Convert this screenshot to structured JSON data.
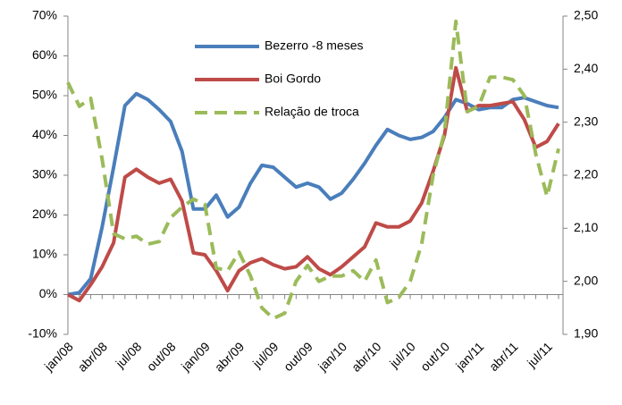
{
  "chart_data": {
    "type": "line",
    "categories": [
      "jan/08",
      null,
      null,
      "abr/08",
      null,
      null,
      "jul/08",
      null,
      null,
      "out/08",
      null,
      null,
      "jan/09",
      null,
      null,
      "abr/09",
      null,
      null,
      "jul/09",
      null,
      null,
      "out/09",
      null,
      null,
      "jan/10",
      null,
      null,
      "abr/10",
      null,
      null,
      "jul/10",
      null,
      null,
      "out/10",
      null,
      null,
      "jan/11",
      null,
      null,
      "abr/11",
      null,
      null,
      "jul/11",
      null
    ],
    "series": [
      {
        "name": "Bezerro -8 meses",
        "color": "#4a7ebb",
        "dash": false,
        "values": [
          0,
          0.5,
          4,
          17,
          32,
          47.5,
          50.5,
          49,
          46.5,
          43.5,
          36,
          21.5,
          21.5,
          25,
          19.5,
          22,
          28,
          32.5,
          32,
          29.5,
          27,
          28,
          27,
          24,
          25.5,
          29,
          33,
          37.5,
          41.5,
          40,
          39,
          39.5,
          41,
          44.5,
          49,
          48,
          46.5,
          47,
          47,
          49,
          49.5,
          48.5,
          47.5,
          47
        ]
      },
      {
        "name": "Boi Gordo",
        "color": "#be4b48",
        "dash": false,
        "values": [
          0,
          -1.5,
          2.5,
          7,
          13,
          29.5,
          31.5,
          29.5,
          28,
          29,
          23.5,
          10.5,
          10,
          6,
          1,
          6,
          8,
          9,
          7.5,
          6.5,
          7,
          9.5,
          6.5,
          5,
          7,
          9.5,
          12,
          18,
          17,
          17,
          18.5,
          23,
          31,
          40,
          57,
          46,
          47.5,
          47.5,
          48,
          48.5,
          44,
          37,
          38.5,
          43
        ]
      },
      {
        "name": "Relação de troca",
        "color": "#9bbb59",
        "dash": true,
        "axis": "y2",
        "values": [
          2.375,
          2.33,
          2.345,
          2.23,
          2.09,
          2.08,
          2.085,
          2.07,
          2.075,
          2.12,
          2.14,
          2.155,
          2.145,
          2.025,
          2.02,
          2.055,
          2.01,
          1.95,
          1.93,
          1.94,
          2.0,
          2.03,
          2.0,
          2.01,
          2.01,
          2.02,
          2.0,
          2.04,
          1.96,
          1.97,
          2.0,
          2.07,
          2.2,
          2.28,
          2.49,
          2.32,
          2.33,
          2.385,
          2.385,
          2.38,
          2.35,
          2.24,
          2.16,
          2.25
        ]
      }
    ],
    "ylim": [
      -10,
      70
    ],
    "yticks": [
      {
        "value": -10,
        "label": "-10%"
      },
      {
        "value": 0,
        "label": "0%"
      },
      {
        "value": 10,
        "label": "10%"
      },
      {
        "value": 20,
        "label": "20%"
      },
      {
        "value": 30,
        "label": "30%"
      },
      {
        "value": 40,
        "label": "40%"
      },
      {
        "value": 50,
        "label": "50%"
      },
      {
        "value": 60,
        "label": "60%"
      },
      {
        "value": 70,
        "label": "70%"
      }
    ],
    "y2lim": [
      1.9,
      2.5
    ],
    "y2ticks": [
      {
        "value": 1.9,
        "label": "1,90"
      },
      {
        "value": 2.0,
        "label": "2,00"
      },
      {
        "value": 2.1,
        "label": "2,10"
      },
      {
        "value": 2.2,
        "label": "2,20"
      },
      {
        "value": 2.3,
        "label": "2,30"
      },
      {
        "value": 2.4,
        "label": "2,40"
      },
      {
        "value": 2.5,
        "label": "2,50"
      }
    ],
    "grid": false
  }
}
